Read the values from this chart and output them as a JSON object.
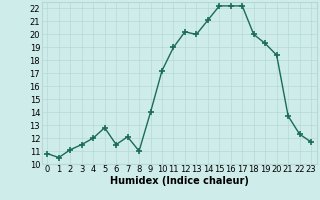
{
  "x": [
    0,
    1,
    2,
    3,
    4,
    5,
    6,
    7,
    8,
    9,
    10,
    11,
    12,
    13,
    14,
    15,
    16,
    17,
    18,
    19,
    20,
    21,
    22,
    23
  ],
  "y": [
    10.8,
    10.5,
    11.1,
    11.5,
    12.0,
    12.8,
    11.5,
    12.1,
    11.0,
    14.0,
    17.2,
    19.0,
    20.2,
    20.0,
    21.1,
    22.2,
    22.2,
    22.2,
    20.0,
    19.3,
    18.4,
    13.7,
    12.3,
    11.7
  ],
  "line_color": "#1a6b5a",
  "marker": "+",
  "marker_size": 4,
  "line_width": 1.0,
  "bg_color": "#ceecea",
  "grid_color": "#b8d8d4",
  "xlabel": "Humidex (Indice chaleur)",
  "xlabel_fontsize": 7,
  "tick_fontsize": 6,
  "ylim": [
    10,
    22.5
  ],
  "xlim": [
    -0.5,
    23.5
  ],
  "yticks": [
    10,
    11,
    12,
    13,
    14,
    15,
    16,
    17,
    18,
    19,
    20,
    21,
    22
  ],
  "xticks": [
    0,
    1,
    2,
    3,
    4,
    5,
    6,
    7,
    8,
    9,
    10,
    11,
    12,
    13,
    14,
    15,
    16,
    17,
    18,
    19,
    20,
    21,
    22,
    23
  ]
}
